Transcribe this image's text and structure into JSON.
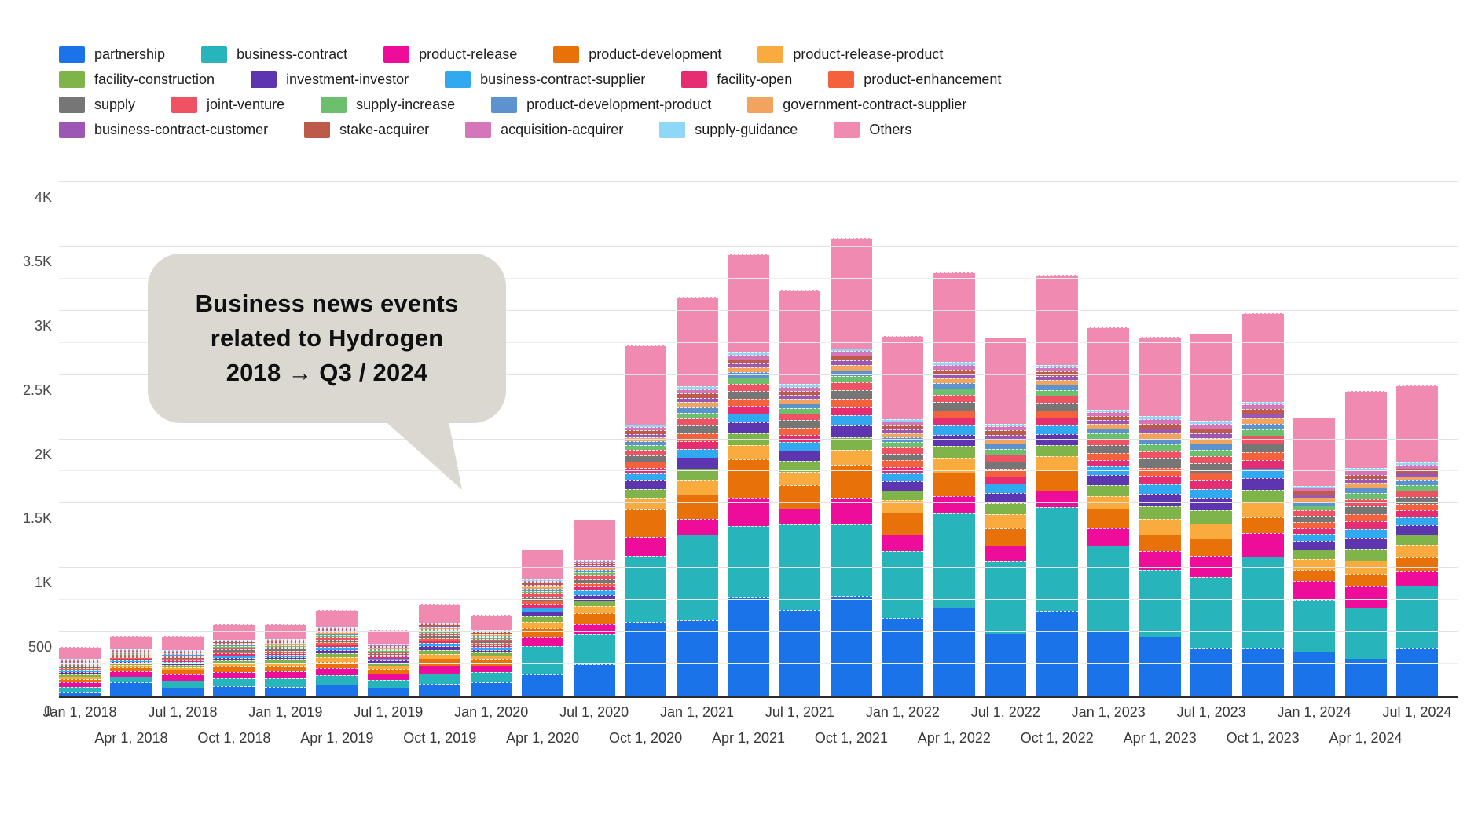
{
  "annotation": {
    "lines": [
      "Business news events",
      "related to Hydrogen",
      "2018 → Q3 / 2024"
    ],
    "bubble_color": "#dbd7d1"
  },
  "axis": {
    "ytick_labels": [
      "0",
      "500",
      "1K",
      "1.5K",
      "2K",
      "2.5K",
      "3K",
      "3.5K",
      "4K"
    ]
  },
  "chart_data": {
    "type": "bar",
    "stacked": true,
    "title": "Business news events related to Hydrogen 2018 → Q3 / 2024",
    "xlabel": "",
    "ylabel": "",
    "ylim": [
      0,
      4000
    ],
    "ytick_interval": 500,
    "minor_gridline_interval": 250,
    "grid": true,
    "legend_position": "top",
    "categories": [
      "Jan 1, 2018",
      "Apr 1, 2018",
      "Jul 1, 2018",
      "Oct 1, 2018",
      "Jan 1, 2019",
      "Apr 1, 2019",
      "Jul 1, 2019",
      "Oct 1, 2019",
      "Jan 1, 2020",
      "Apr 1, 2020",
      "Jul 1, 2020",
      "Oct 1, 2020",
      "Jan 1, 2021",
      "Apr 1, 2021",
      "Jul 1, 2021",
      "Oct 1, 2021",
      "Jan 1, 2022",
      "Apr 1, 2022",
      "Jul 1, 2022",
      "Oct 1, 2022",
      "Jan 1, 2023",
      "Apr 1, 2023",
      "Jul 1, 2023",
      "Oct 1, 2023",
      "Jan 1, 2024",
      "Apr 1, 2024",
      "Jul 1, 2024"
    ],
    "series": [
      {
        "name": "partnership",
        "color": "#1a73e8",
        "values": [
          30,
          110,
          70,
          80,
          75,
          90,
          70,
          95,
          110,
          170,
          250,
          580,
          590,
          770,
          670,
          780,
          610,
          690,
          490,
          665,
          510,
          465,
          370,
          370,
          350,
          295,
          375
        ]
      },
      {
        "name": "business-contract",
        "color": "#27b4bb",
        "values": [
          45,
          45,
          55,
          60,
          65,
          75,
          60,
          85,
          80,
          220,
          230,
          515,
          670,
          557,
          665,
          560,
          520,
          730,
          560,
          805,
          660,
          520,
          560,
          715,
          400,
          395,
          485
        ]
      },
      {
        "name": "product-release",
        "color": "#ee0c9a",
        "values": [
          35,
          40,
          45,
          50,
          55,
          55,
          45,
          60,
          50,
          70,
          85,
          147,
          120,
          215,
          125,
          200,
          130,
          140,
          120,
          130,
          140,
          145,
          165,
          185,
          145,
          165,
          120
        ]
      },
      {
        "name": "product-development",
        "color": "#e8710a",
        "values": [
          25,
          30,
          35,
          40,
          40,
          50,
          40,
          55,
          45,
          70,
          80,
          210,
          190,
          305,
          185,
          260,
          170,
          180,
          140,
          160,
          150,
          130,
          130,
          120,
          90,
          95,
          100
        ]
      },
      {
        "name": "product-release-product",
        "color": "#f9ab3e",
        "values": [
          20,
          18,
          20,
          27,
          27,
          35,
          25,
          37,
          30,
          49,
          55,
          86,
          109,
          108,
          102,
          118,
          94,
          112,
          105,
          107,
          100,
          120,
          119,
          117,
          85,
          108,
          96
        ]
      },
      {
        "name": "facility-construction",
        "color": "#7fb44a",
        "values": [
          17,
          15,
          17,
          23,
          23,
          30,
          21,
          31,
          25,
          42,
          46,
          73,
          92,
          91,
          86,
          100,
          79,
          95,
          89,
          90,
          85,
          101,
          101,
          99,
          72,
          91,
          81
        ]
      },
      {
        "name": "investment-investor",
        "color": "#5e35b1",
        "values": [
          15,
          14,
          15,
          21,
          21,
          27,
          19,
          28,
          23,
          38,
          42,
          66,
          84,
          83,
          79,
          91,
          72,
          86,
          81,
          82,
          77,
          92,
          92,
          90,
          66,
          83,
          74
        ]
      },
      {
        "name": "business-contract-supplier",
        "color": "#30a9f1",
        "values": [
          13,
          12,
          13,
          18,
          18,
          23,
          16,
          24,
          20,
          32,
          36,
          56,
          71,
          71,
          67,
          77,
          61,
          73,
          69,
          70,
          65,
          78,
          78,
          77,
          56,
          71,
          63
        ]
      },
      {
        "name": "facility-open",
        "color": "#e62d72",
        "values": [
          11,
          10,
          11,
          15,
          15,
          19,
          13,
          20,
          16,
          27,
          29,
          46,
          59,
          58,
          55,
          64,
          50,
          60,
          57,
          57,
          54,
          64,
          64,
          63,
          46,
          58,
          52
        ]
      },
      {
        "name": "product-enhancement",
        "color": "#f4613d",
        "values": [
          11,
          10,
          11,
          15,
          15,
          19,
          13,
          20,
          16,
          27,
          29,
          46,
          59,
          58,
          55,
          64,
          50,
          60,
          57,
          57,
          54,
          64,
          64,
          63,
          46,
          58,
          52
        ]
      },
      {
        "name": "supply",
        "color": "#767676",
        "values": [
          11,
          11,
          11,
          16,
          16,
          20,
          14,
          21,
          17,
          28,
          31,
          50,
          63,
          62,
          59,
          68,
          54,
          65,
          61,
          62,
          58,
          69,
          69,
          68,
          49,
          62,
          56
        ]
      },
      {
        "name": "joint-venture",
        "color": "#ee5263",
        "values": [
          10,
          9,
          10,
          14,
          14,
          18,
          12,
          19,
          15,
          25,
          27,
          43,
          55,
          54,
          51,
          59,
          47,
          56,
          53,
          53,
          50,
          60,
          59,
          59,
          43,
          54,
          48
        ]
      },
      {
        "name": "supply-increase",
        "color": "#6cbf6c",
        "values": [
          8,
          8,
          8,
          12,
          12,
          15,
          10,
          16,
          13,
          21,
          23,
          36,
          46,
          46,
          43,
          50,
          42,
          47,
          45,
          45,
          42,
          51,
          50,
          50,
          36,
          46,
          41
        ]
      },
      {
        "name": "product-development-product",
        "color": "#5c93ce",
        "values": [
          8,
          7,
          8,
          10,
          10,
          13,
          10,
          14,
          11,
          19,
          21,
          33,
          42,
          42,
          39,
          46,
          38,
          43,
          41,
          41,
          39,
          46,
          46,
          45,
          33,
          42,
          37
        ]
      },
      {
        "name": "government-contract-supplier",
        "color": "#f2a35e",
        "values": [
          7,
          6,
          7,
          9,
          9,
          12,
          9,
          13,
          10,
          17,
          19,
          30,
          38,
          37,
          35,
          41,
          32,
          39,
          36,
          37,
          35,
          41,
          41,
          41,
          29,
          37,
          33
        ]
      },
      {
        "name": "business-contract-customer",
        "color": "#9c57b5",
        "values": [
          6,
          6,
          6,
          8,
          8,
          11,
          8,
          11,
          9,
          15,
          17,
          26,
          34,
          33,
          31,
          36,
          29,
          34,
          32,
          33,
          31,
          37,
          37,
          36,
          26,
          33,
          30
        ]
      },
      {
        "name": "stake-acquirer",
        "color": "#bd5b4a",
        "values": [
          6,
          5,
          6,
          8,
          8,
          11,
          8,
          11,
          9,
          15,
          17,
          26,
          34,
          33,
          31,
          36,
          29,
          34,
          32,
          33,
          31,
          37,
          37,
          36,
          26,
          33,
          30
        ]
      },
      {
        "name": "acquisition-acquirer",
        "color": "#d476b9",
        "values": [
          5,
          5,
          5,
          8,
          8,
          11,
          8,
          11,
          9,
          15,
          17,
          26,
          34,
          33,
          31,
          36,
          29,
          34,
          32,
          33,
          31,
          37,
          37,
          36,
          26,
          33,
          30
        ]
      },
      {
        "name": "supply-guidance",
        "color": "#8fd7f7",
        "values": [
          4,
          4,
          4,
          6,
          6,
          7,
          5,
          7,
          6,
          10,
          10,
          17,
          21,
          21,
          20,
          23,
          18,
          22,
          20,
          21,
          19,
          23,
          23,
          23,
          16,
          19,
          19
        ]
      },
      {
        "name": "Others",
        "color": "#f08ab1",
        "values": [
          95,
          100,
          110,
          120,
          115,
          130,
          105,
          135,
          115,
          230,
          310,
          620,
          700,
          760,
          730,
          860,
          650,
          700,
          670,
          700,
          640,
          620,
          680,
          690,
          530,
          600,
          600
        ]
      }
    ]
  }
}
